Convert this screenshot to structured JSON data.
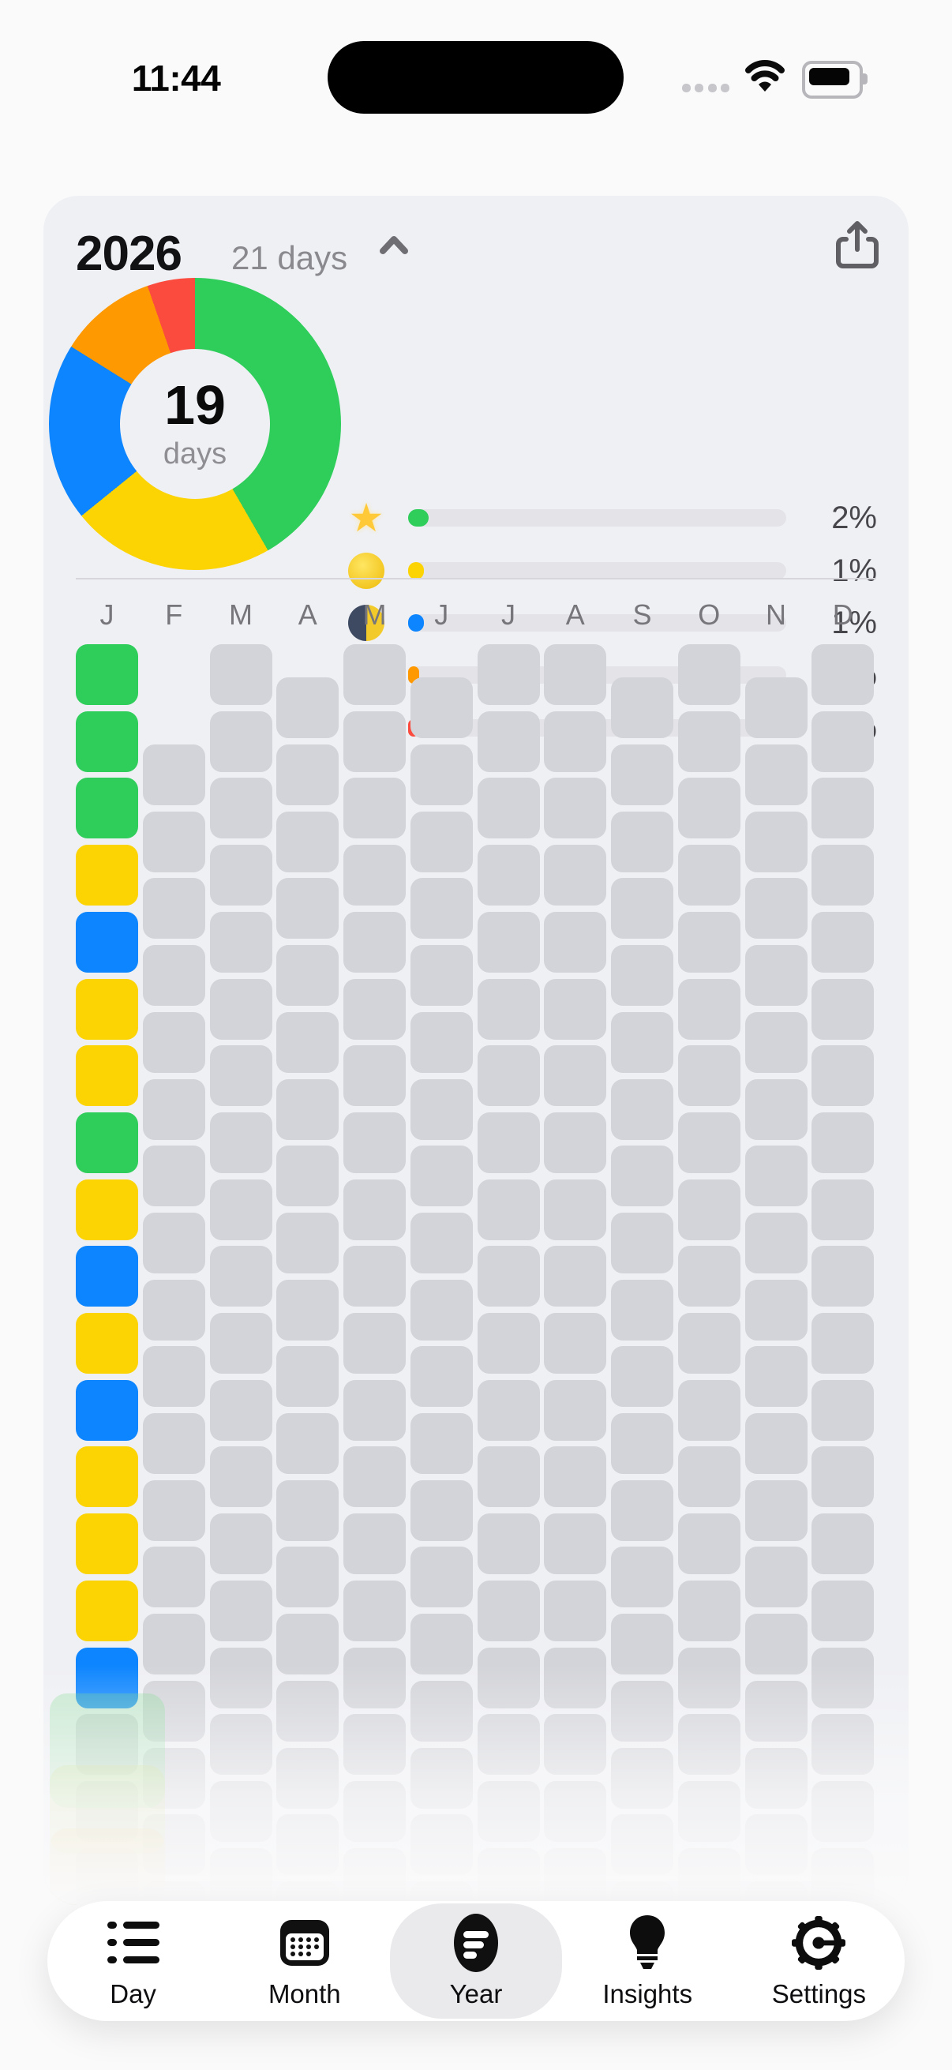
{
  "status_bar": {
    "time": "11:44",
    "signal_dots": 4
  },
  "palette": {
    "green": "#2FCE5B",
    "yellow": "#FCD303",
    "blue": "#0C85FE",
    "orange": "#FE9902",
    "red": "#FA4B3E",
    "empty": "#D3D4D9",
    "card_bg": "#EFF0F4",
    "page_bg": "#FAFAFB",
    "track": "#E3E3E8"
  },
  "card": {
    "header": {
      "year": "2026",
      "range_label": "21 days"
    },
    "donut": {
      "type": "donut",
      "center_value": "19",
      "center_label": "days",
      "segments": [
        {
          "name": "star",
          "color_key": "green",
          "degrees": 150
        },
        {
          "name": "full-moon",
          "color_key": "yellow",
          "degrees": 81
        },
        {
          "name": "last-quarter-moon",
          "color_key": "blue",
          "degrees": 71
        },
        {
          "name": "new-moon",
          "color_key": "orange",
          "degrees": 39
        },
        {
          "name": "hole",
          "color_key": "red",
          "degrees": 19
        }
      ]
    },
    "legend": {
      "rows": [
        {
          "icon": "star",
          "color_key": "green",
          "percent": 2,
          "percent_label": "2%"
        },
        {
          "icon": "full-moon",
          "color_key": "yellow",
          "percent": 1,
          "percent_label": "1%"
        },
        {
          "icon": "last-quarter-moon",
          "color_key": "blue",
          "percent": 1,
          "percent_label": "1%"
        },
        {
          "icon": "new-moon",
          "color_key": "orange",
          "percent": 0,
          "percent_label": "0%"
        },
        {
          "icon": "hole",
          "color_key": "red",
          "percent": 0,
          "percent_label": "0%"
        }
      ]
    },
    "grid": {
      "months": [
        {
          "label": "J",
          "days": 31,
          "offset_rows": 0,
          "cells": [
            "green",
            "green",
            "green",
            "yellow",
            "blue",
            "yellow",
            "yellow",
            "green",
            "yellow",
            "blue",
            "yellow",
            "blue",
            "yellow",
            "yellow",
            "yellow",
            "blue"
          ]
        },
        {
          "label": "F",
          "days": 28,
          "offset_rows": 1.5,
          "cells": []
        },
        {
          "label": "M",
          "days": 31,
          "offset_rows": 0,
          "cells": []
        },
        {
          "label": "A",
          "days": 30,
          "offset_rows": 0.5,
          "cells": []
        },
        {
          "label": "M",
          "days": 31,
          "offset_rows": 0,
          "cells": []
        },
        {
          "label": "J",
          "days": 30,
          "offset_rows": 0.5,
          "cells": []
        },
        {
          "label": "J",
          "days": 31,
          "offset_rows": 0,
          "cells": []
        },
        {
          "label": "A",
          "days": 31,
          "offset_rows": 0,
          "cells": []
        },
        {
          "label": "S",
          "days": 30,
          "offset_rows": 0.5,
          "cells": []
        },
        {
          "label": "O",
          "days": 31,
          "offset_rows": 0,
          "cells": []
        },
        {
          "label": "N",
          "days": 30,
          "offset_rows": 0.5,
          "cells": []
        },
        {
          "label": "D",
          "days": 31,
          "offset_rows": 0,
          "cells": []
        }
      ]
    }
  },
  "tab_bar": {
    "active": "year",
    "tabs": [
      {
        "id": "day",
        "label": "Day"
      },
      {
        "id": "month",
        "label": "Month"
      },
      {
        "id": "year",
        "label": "Year"
      },
      {
        "id": "insights",
        "label": "Insights"
      },
      {
        "id": "settings",
        "label": "Settings"
      }
    ]
  },
  "chart_data": {
    "type": "pie",
    "title": "2026 year donut",
    "center_label": "19 days",
    "segments_degrees": {
      "green": 150,
      "yellow": 81,
      "blue": 71,
      "orange": 39,
      "red": 19
    },
    "legend_percents": {
      "star": "2%",
      "full-moon": "1%",
      "last-quarter-moon": "1%",
      "new-moon": "0%",
      "hole": "0%"
    }
  }
}
